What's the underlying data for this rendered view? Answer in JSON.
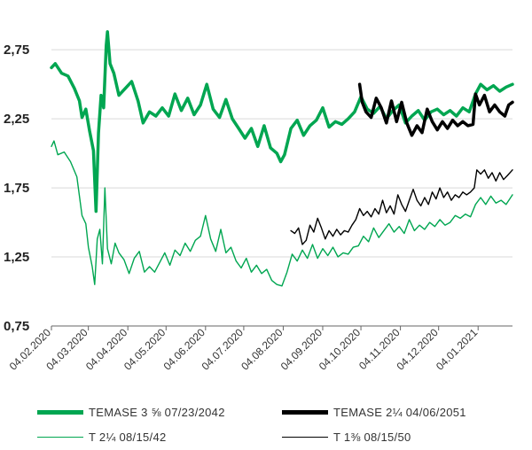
{
  "chart_data": {
    "type": "line",
    "title": "",
    "xlabel": "",
    "ylabel": "",
    "ylim": [
      0.75,
      2.95
    ],
    "yticks": [
      "2,75",
      "2,25",
      "1,75",
      "1,25",
      "0,75"
    ],
    "ytick_values": [
      2.75,
      2.25,
      1.75,
      1.25,
      0.75
    ],
    "xlim": [
      "2020-02-04",
      "2021-01-31"
    ],
    "xticks": [
      "04.02.2020",
      "04.03.2020",
      "04.04.2020",
      "04.05.2020",
      "04.06.2020",
      "04.07.2020",
      "04.08.2020",
      "04.09.2020",
      "04.10.2020",
      "04.11.2020",
      "04.12.2020",
      "04.01.2021"
    ],
    "xtick_dates": [
      "2020-02-04",
      "2020-03-04",
      "2020-04-04",
      "2020-05-04",
      "2020-06-04",
      "2020-07-04",
      "2020-08-04",
      "2020-09-04",
      "2020-10-04",
      "2020-11-04",
      "2020-12-04",
      "2021-01-04"
    ],
    "grid": "horizontal",
    "legend_position": "bottom",
    "series": [
      {
        "name": "TEMASE 3 ⅝ 07/23/2042",
        "color": "#00a651",
        "stroke": "thick",
        "points": [
          [
            "2020-02-04",
            2.62
          ],
          [
            "2020-02-07",
            2.65
          ],
          [
            "2020-02-12",
            2.58
          ],
          [
            "2020-02-17",
            2.56
          ],
          [
            "2020-02-22",
            2.47
          ],
          [
            "2020-02-26",
            2.38
          ],
          [
            "2020-02-28",
            2.26
          ],
          [
            "2020-03-02",
            2.32
          ],
          [
            "2020-03-05",
            2.16
          ],
          [
            "2020-03-08",
            2.02
          ],
          [
            "2020-03-10",
            1.58
          ],
          [
            "2020-03-12",
            2.15
          ],
          [
            "2020-03-14",
            2.42
          ],
          [
            "2020-03-16",
            2.33
          ],
          [
            "2020-03-18",
            2.78
          ],
          [
            "2020-03-19",
            2.88
          ],
          [
            "2020-03-21",
            2.65
          ],
          [
            "2020-03-24",
            2.58
          ],
          [
            "2020-03-28",
            2.42
          ],
          [
            "2020-04-02",
            2.47
          ],
          [
            "2020-04-07",
            2.52
          ],
          [
            "2020-04-12",
            2.38
          ],
          [
            "2020-04-16",
            2.22
          ],
          [
            "2020-04-21",
            2.3
          ],
          [
            "2020-04-26",
            2.27
          ],
          [
            "2020-05-01",
            2.33
          ],
          [
            "2020-05-06",
            2.27
          ],
          [
            "2020-05-11",
            2.43
          ],
          [
            "2020-05-16",
            2.31
          ],
          [
            "2020-05-21",
            2.4
          ],
          [
            "2020-05-26",
            2.28
          ],
          [
            "2020-05-31",
            2.35
          ],
          [
            "2020-06-05",
            2.5
          ],
          [
            "2020-06-10",
            2.32
          ],
          [
            "2020-06-15",
            2.26
          ],
          [
            "2020-06-20",
            2.39
          ],
          [
            "2020-06-25",
            2.25
          ],
          [
            "2020-06-30",
            2.18
          ],
          [
            "2020-07-05",
            2.11
          ],
          [
            "2020-07-10",
            2.18
          ],
          [
            "2020-07-15",
            2.05
          ],
          [
            "2020-07-20",
            2.2
          ],
          [
            "2020-07-25",
            2.04
          ],
          [
            "2020-07-30",
            2.0
          ],
          [
            "2020-08-02",
            1.94
          ],
          [
            "2020-08-05",
            1.99
          ],
          [
            "2020-08-10",
            2.18
          ],
          [
            "2020-08-15",
            2.24
          ],
          [
            "2020-08-20",
            2.13
          ],
          [
            "2020-08-25",
            2.2
          ],
          [
            "2020-08-30",
            2.24
          ],
          [
            "2020-09-04",
            2.33
          ],
          [
            "2020-09-09",
            2.19
          ],
          [
            "2020-09-14",
            2.23
          ],
          [
            "2020-09-19",
            2.21
          ],
          [
            "2020-09-24",
            2.25
          ],
          [
            "2020-09-29",
            2.3
          ],
          [
            "2020-10-04",
            2.41
          ],
          [
            "2020-10-09",
            2.32
          ],
          [
            "2020-10-14",
            2.29
          ],
          [
            "2020-10-19",
            2.34
          ],
          [
            "2020-10-24",
            2.25
          ],
          [
            "2020-10-29",
            2.31
          ],
          [
            "2020-11-03",
            2.35
          ],
          [
            "2020-11-08",
            2.22
          ],
          [
            "2020-11-13",
            2.27
          ],
          [
            "2020-11-18",
            2.31
          ],
          [
            "2020-11-23",
            2.24
          ],
          [
            "2020-11-28",
            2.3
          ],
          [
            "2020-12-03",
            2.32
          ],
          [
            "2020-12-08",
            2.28
          ],
          [
            "2020-12-13",
            2.31
          ],
          [
            "2020-12-18",
            2.27
          ],
          [
            "2020-12-23",
            2.33
          ],
          [
            "2020-12-28",
            2.3
          ],
          [
            "2021-01-02",
            2.43
          ],
          [
            "2021-01-06",
            2.5
          ],
          [
            "2021-01-11",
            2.46
          ],
          [
            "2021-01-16",
            2.49
          ],
          [
            "2021-01-21",
            2.45
          ],
          [
            "2021-01-26",
            2.48
          ],
          [
            "2021-01-31",
            2.5
          ]
        ]
      },
      {
        "name": "TEMASE 2¼ 04/06/2051",
        "color": "#000000",
        "stroke": "thick",
        "points": [
          [
            "2020-10-03",
            2.5
          ],
          [
            "2020-10-05",
            2.37
          ],
          [
            "2020-10-08",
            2.3
          ],
          [
            "2020-10-12",
            2.26
          ],
          [
            "2020-10-16",
            2.4
          ],
          [
            "2020-10-20",
            2.33
          ],
          [
            "2020-10-24",
            2.22
          ],
          [
            "2020-10-28",
            2.38
          ],
          [
            "2020-11-01",
            2.23
          ],
          [
            "2020-11-05",
            2.37
          ],
          [
            "2020-11-09",
            2.22
          ],
          [
            "2020-11-13",
            2.13
          ],
          [
            "2020-11-17",
            2.2
          ],
          [
            "2020-11-21",
            2.15
          ],
          [
            "2020-11-25",
            2.32
          ],
          [
            "2020-11-29",
            2.23
          ],
          [
            "2020-12-03",
            2.17
          ],
          [
            "2020-12-07",
            2.23
          ],
          [
            "2020-12-11",
            2.18
          ],
          [
            "2020-12-15",
            2.24
          ],
          [
            "2020-12-19",
            2.2
          ],
          [
            "2020-12-23",
            2.23
          ],
          [
            "2020-12-27",
            2.2
          ],
          [
            "2020-12-31",
            2.21
          ],
          [
            "2021-01-02",
            2.43
          ],
          [
            "2021-01-05",
            2.35
          ],
          [
            "2021-01-09",
            2.42
          ],
          [
            "2021-01-13",
            2.3
          ],
          [
            "2021-01-17",
            2.35
          ],
          [
            "2021-01-21",
            2.3
          ],
          [
            "2021-01-25",
            2.27
          ],
          [
            "2021-01-28",
            2.35
          ],
          [
            "2021-01-31",
            2.37
          ]
        ]
      },
      {
        "name": "T 2¼ 08/15/42",
        "color": "#00a651",
        "stroke": "thin",
        "points": [
          [
            "2020-02-04",
            2.05
          ],
          [
            "2020-02-06",
            2.09
          ],
          [
            "2020-02-09",
            1.99
          ],
          [
            "2020-02-14",
            2.01
          ],
          [
            "2020-02-19",
            1.94
          ],
          [
            "2020-02-24",
            1.83
          ],
          [
            "2020-02-28",
            1.55
          ],
          [
            "2020-03-02",
            1.49
          ],
          [
            "2020-03-04",
            1.32
          ],
          [
            "2020-03-07",
            1.18
          ],
          [
            "2020-03-09",
            1.05
          ],
          [
            "2020-03-11",
            1.38
          ],
          [
            "2020-03-13",
            1.45
          ],
          [
            "2020-03-15",
            1.2
          ],
          [
            "2020-03-17",
            1.75
          ],
          [
            "2020-03-19",
            1.31
          ],
          [
            "2020-03-22",
            1.2
          ],
          [
            "2020-03-25",
            1.35
          ],
          [
            "2020-03-28",
            1.28
          ],
          [
            "2020-04-01",
            1.23
          ],
          [
            "2020-04-05",
            1.13
          ],
          [
            "2020-04-09",
            1.24
          ],
          [
            "2020-04-13",
            1.29
          ],
          [
            "2020-04-17",
            1.14
          ],
          [
            "2020-04-21",
            1.18
          ],
          [
            "2020-04-25",
            1.14
          ],
          [
            "2020-04-29",
            1.21
          ],
          [
            "2020-05-03",
            1.28
          ],
          [
            "2020-05-07",
            1.19
          ],
          [
            "2020-05-11",
            1.3
          ],
          [
            "2020-05-15",
            1.26
          ],
          [
            "2020-05-19",
            1.35
          ],
          [
            "2020-05-23",
            1.29
          ],
          [
            "2020-05-27",
            1.37
          ],
          [
            "2020-05-31",
            1.4
          ],
          [
            "2020-06-04",
            1.55
          ],
          [
            "2020-06-08",
            1.38
          ],
          [
            "2020-06-12",
            1.29
          ],
          [
            "2020-06-16",
            1.45
          ],
          [
            "2020-06-20",
            1.28
          ],
          [
            "2020-06-24",
            1.32
          ],
          [
            "2020-06-28",
            1.22
          ],
          [
            "2020-07-02",
            1.17
          ],
          [
            "2020-07-06",
            1.24
          ],
          [
            "2020-07-10",
            1.14
          ],
          [
            "2020-07-14",
            1.19
          ],
          [
            "2020-07-18",
            1.13
          ],
          [
            "2020-07-22",
            1.16
          ],
          [
            "2020-07-26",
            1.08
          ],
          [
            "2020-07-30",
            1.05
          ],
          [
            "2020-08-03",
            1.04
          ],
          [
            "2020-08-07",
            1.14
          ],
          [
            "2020-08-11",
            1.27
          ],
          [
            "2020-08-15",
            1.22
          ],
          [
            "2020-08-19",
            1.3
          ],
          [
            "2020-08-23",
            1.24
          ],
          [
            "2020-08-27",
            1.34
          ],
          [
            "2020-08-31",
            1.24
          ],
          [
            "2020-09-04",
            1.31
          ],
          [
            "2020-09-08",
            1.26
          ],
          [
            "2020-09-12",
            1.32
          ],
          [
            "2020-09-16",
            1.25
          ],
          [
            "2020-09-20",
            1.28
          ],
          [
            "2020-09-24",
            1.27
          ],
          [
            "2020-09-28",
            1.32
          ],
          [
            "2020-10-02",
            1.33
          ],
          [
            "2020-10-06",
            1.4
          ],
          [
            "2020-10-10",
            1.36
          ],
          [
            "2020-10-14",
            1.46
          ],
          [
            "2020-10-18",
            1.39
          ],
          [
            "2020-10-22",
            1.44
          ],
          [
            "2020-10-26",
            1.49
          ],
          [
            "2020-10-30",
            1.43
          ],
          [
            "2020-11-03",
            1.47
          ],
          [
            "2020-11-07",
            1.42
          ],
          [
            "2020-11-11",
            1.52
          ],
          [
            "2020-11-15",
            1.44
          ],
          [
            "2020-11-19",
            1.48
          ],
          [
            "2020-11-23",
            1.45
          ],
          [
            "2020-11-27",
            1.5
          ],
          [
            "2020-12-01",
            1.47
          ],
          [
            "2020-12-05",
            1.52
          ],
          [
            "2020-12-09",
            1.48
          ],
          [
            "2020-12-13",
            1.5
          ],
          [
            "2020-12-17",
            1.55
          ],
          [
            "2020-12-21",
            1.53
          ],
          [
            "2020-12-25",
            1.56
          ],
          [
            "2020-12-29",
            1.54
          ],
          [
            "2021-01-02",
            1.63
          ],
          [
            "2021-01-06",
            1.68
          ],
          [
            "2021-01-10",
            1.63
          ],
          [
            "2021-01-14",
            1.69
          ],
          [
            "2021-01-18",
            1.64
          ],
          [
            "2021-01-22",
            1.66
          ],
          [
            "2021-01-26",
            1.63
          ],
          [
            "2021-01-31",
            1.7
          ]
        ]
      },
      {
        "name": "T 1⅜ 08/15/50",
        "color": "#000000",
        "stroke": "thin",
        "points": [
          [
            "2020-08-10",
            1.44
          ],
          [
            "2020-08-13",
            1.42
          ],
          [
            "2020-08-16",
            1.46
          ],
          [
            "2020-08-19",
            1.34
          ],
          [
            "2020-08-22",
            1.37
          ],
          [
            "2020-08-25",
            1.48
          ],
          [
            "2020-08-28",
            1.43
          ],
          [
            "2020-08-31",
            1.53
          ],
          [
            "2020-09-03",
            1.46
          ],
          [
            "2020-09-06",
            1.38
          ],
          [
            "2020-09-09",
            1.44
          ],
          [
            "2020-09-12",
            1.4
          ],
          [
            "2020-09-15",
            1.45
          ],
          [
            "2020-09-18",
            1.41
          ],
          [
            "2020-09-21",
            1.44
          ],
          [
            "2020-09-24",
            1.43
          ],
          [
            "2020-09-27",
            1.48
          ],
          [
            "2020-09-30",
            1.52
          ],
          [
            "2020-10-03",
            1.6
          ],
          [
            "2020-10-06",
            1.55
          ],
          [
            "2020-10-09",
            1.58
          ],
          [
            "2020-10-12",
            1.54
          ],
          [
            "2020-10-15",
            1.6
          ],
          [
            "2020-10-18",
            1.56
          ],
          [
            "2020-10-21",
            1.66
          ],
          [
            "2020-10-24",
            1.57
          ],
          [
            "2020-10-27",
            1.62
          ],
          [
            "2020-10-30",
            1.56
          ],
          [
            "2020-11-02",
            1.7
          ],
          [
            "2020-11-05",
            1.63
          ],
          [
            "2020-11-08",
            1.58
          ],
          [
            "2020-11-11",
            1.66
          ],
          [
            "2020-11-14",
            1.74
          ],
          [
            "2020-11-17",
            1.66
          ],
          [
            "2020-11-20",
            1.62
          ],
          [
            "2020-11-23",
            1.68
          ],
          [
            "2020-11-26",
            1.63
          ],
          [
            "2020-11-29",
            1.72
          ],
          [
            "2020-12-02",
            1.67
          ],
          [
            "2020-12-05",
            1.75
          ],
          [
            "2020-12-08",
            1.68
          ],
          [
            "2020-12-11",
            1.72
          ],
          [
            "2020-12-14",
            1.66
          ],
          [
            "2020-12-17",
            1.7
          ],
          [
            "2020-12-20",
            1.68
          ],
          [
            "2020-12-23",
            1.72
          ],
          [
            "2020-12-26",
            1.7
          ],
          [
            "2020-12-29",
            1.72
          ],
          [
            "2021-01-01",
            1.75
          ],
          [
            "2021-01-03",
            1.88
          ],
          [
            "2021-01-06",
            1.85
          ],
          [
            "2021-01-09",
            1.88
          ],
          [
            "2021-01-12",
            1.82
          ],
          [
            "2021-01-15",
            1.86
          ],
          [
            "2021-01-18",
            1.8
          ],
          [
            "2021-01-21",
            1.86
          ],
          [
            "2021-01-24",
            1.81
          ],
          [
            "2021-01-27",
            1.84
          ],
          [
            "2021-01-31",
            1.88
          ]
        ]
      }
    ]
  }
}
